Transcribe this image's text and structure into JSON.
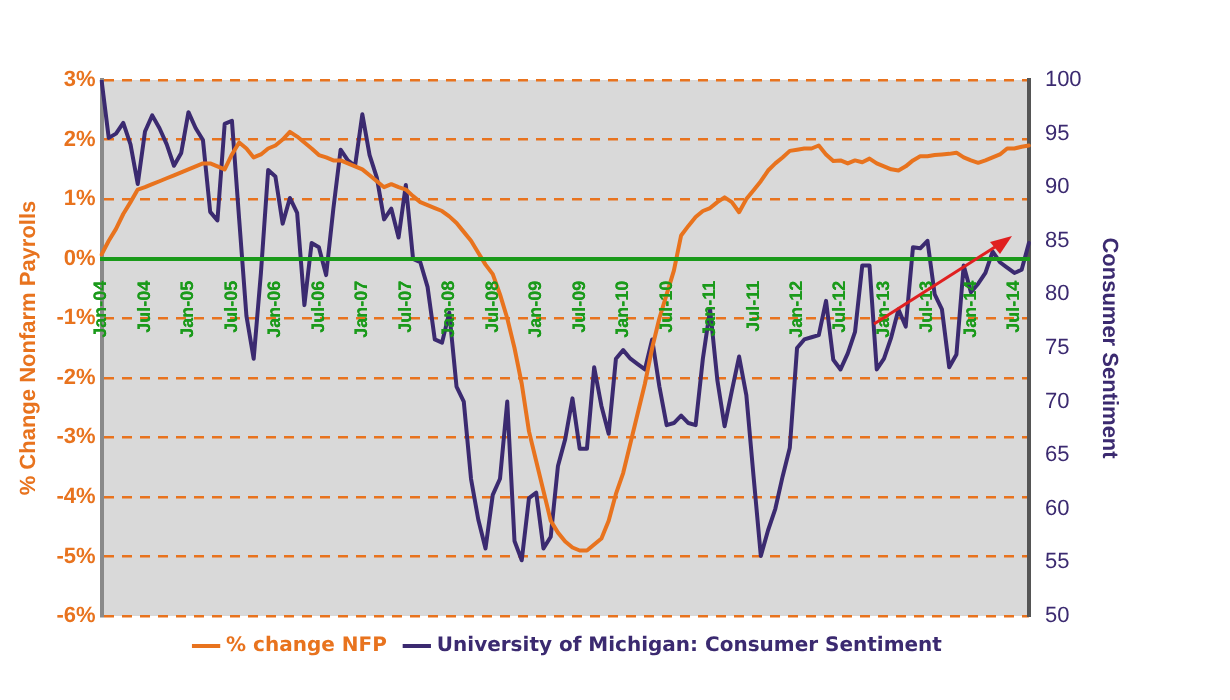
{
  "chart_data": {
    "type": "line",
    "ylabel": "% Change Nonfarm Payrolls",
    "y2label": "Consumer Sentiment",
    "categories": [
      "Jan-04",
      null,
      null,
      null,
      null,
      null,
      "Jul-04",
      null,
      null,
      null,
      null,
      null,
      "Jan-05",
      null,
      null,
      null,
      null,
      null,
      "Jul-05",
      null,
      null,
      null,
      null,
      null,
      "Jan-06",
      null,
      null,
      null,
      null,
      null,
      "Jul-06",
      null,
      null,
      null,
      null,
      null,
      "Jan-07",
      null,
      null,
      null,
      null,
      null,
      "Jul-07",
      null,
      null,
      null,
      null,
      null,
      "Jan-08",
      null,
      null,
      null,
      null,
      null,
      "Jul-08",
      null,
      null,
      null,
      null,
      null,
      "Jan-09",
      null,
      null,
      null,
      null,
      null,
      "Jul-09",
      null,
      null,
      null,
      null,
      null,
      "Jan-10",
      null,
      null,
      null,
      null,
      null,
      "Jul-10",
      null,
      null,
      null,
      null,
      null,
      "Jan-11",
      null,
      null,
      null,
      null,
      null,
      "Jul-11",
      null,
      null,
      null,
      null,
      null,
      "Jan-12",
      null,
      null,
      null,
      null,
      null,
      "Jul-12",
      null,
      null,
      null,
      null,
      null,
      "Jan-13",
      null,
      null,
      null,
      null,
      null,
      "Jul-13",
      null,
      null,
      null,
      null,
      null,
      "Jan-14",
      null,
      null,
      null,
      null,
      null,
      "Jul-14",
      null,
      null
    ],
    "series": [
      {
        "name": "% change NFP",
        "color": "#e8731e",
        "values": [
          0.07,
          0.3,
          0.5,
          0.75,
          0.95,
          1.16,
          1.2,
          1.25,
          1.3,
          1.35,
          1.4,
          1.45,
          1.5,
          1.55,
          1.6,
          1.6,
          1.55,
          1.5,
          1.75,
          1.95,
          1.85,
          1.7,
          1.75,
          1.85,
          1.9,
          2.0,
          2.13,
          2.05,
          1.95,
          1.85,
          1.74,
          1.7,
          1.65,
          1.65,
          1.6,
          1.55,
          1.5,
          1.4,
          1.3,
          1.2,
          1.25,
          1.2,
          1.16,
          1.05,
          0.95,
          0.9,
          0.85,
          0.8,
          0.71,
          0.6,
          0.45,
          0.3,
          0.1,
          -0.1,
          -0.26,
          -0.6,
          -1.0,
          -1.5,
          -2.1,
          -2.9,
          -3.4,
          -3.9,
          -4.4,
          -4.6,
          -4.75,
          -4.85,
          -4.9,
          -4.9,
          -4.8,
          -4.7,
          -4.4,
          -3.95,
          -3.6,
          -3.1,
          -2.6,
          -2.1,
          -1.5,
          -1.0,
          -0.6,
          -0.2,
          0.39,
          0.55,
          0.7,
          0.8,
          0.85,
          0.95,
          1.03,
          0.95,
          0.78,
          1.0,
          1.15,
          1.3,
          1.48,
          1.6,
          1.7,
          1.81,
          1.83,
          1.85,
          1.85,
          1.9,
          1.75,
          1.64,
          1.65,
          1.6,
          1.65,
          1.62,
          1.68,
          1.6,
          1.55,
          1.5,
          1.48,
          1.55,
          1.65,
          1.72,
          1.72,
          1.74,
          1.75,
          1.76,
          1.78,
          1.7,
          1.65,
          1.61,
          1.65,
          1.7,
          1.75,
          1.85,
          1.85,
          1.88,
          1.9
        ]
      },
      {
        "name": "University of Michigan: Consumer Sentiment",
        "color": "#3b2a70",
        "axis": "y2",
        "values": [
          100,
          94.6,
          95,
          96,
          94,
          90.3,
          95.2,
          96.7,
          95.5,
          94,
          92,
          93.2,
          97,
          95.5,
          94.4,
          87.7,
          86.9,
          95.9,
          96.2,
          87,
          78,
          74,
          82,
          91.6,
          91,
          86.6,
          89,
          87.6,
          79,
          84.8,
          84.4,
          81.8,
          88,
          93.5,
          92.5,
          92,
          96.8,
          93,
          90.9,
          87,
          88,
          85.3,
          90.2,
          83.3,
          83,
          80.7,
          75.8,
          75.5,
          78.3,
          71.4,
          70,
          62.8,
          59,
          56.3,
          61.3,
          62.8,
          70,
          57,
          55.2,
          61,
          61.5,
          56.3,
          57.4,
          64,
          66.5,
          70.3,
          65.6,
          65.6,
          73.2,
          69.6,
          67,
          74,
          74.8,
          74,
          73.5,
          73,
          75.8,
          71.4,
          67.8,
          68,
          68.7,
          68,
          67.8,
          74,
          78.6,
          72,
          67.7,
          71,
          74.2,
          70.6,
          63,
          55.6,
          58,
          60,
          63,
          65.7,
          75,
          75.8,
          76,
          76.2,
          79.4,
          73.9,
          73,
          74.5,
          76.5,
          82.7,
          82.7,
          73,
          74,
          76,
          78.6,
          77,
          84.4,
          84.3,
          85,
          80,
          78.6,
          73.2,
          74.4,
          82.7,
          80.2,
          81,
          82,
          84,
          83,
          82.5,
          82,
          82.3,
          84.8
        ]
      }
    ],
    "ylim": [
      -6,
      3
    ],
    "yticks": [
      {
        "value": -6,
        "label": "-6%"
      },
      {
        "value": -5,
        "label": "-5%"
      },
      {
        "value": -4,
        "label": "-4%"
      },
      {
        "value": -3,
        "label": "-3%"
      },
      {
        "value": -2,
        "label": "-2%"
      },
      {
        "value": -1,
        "label": "-1%"
      },
      {
        "value": 0,
        "label": "0%"
      },
      {
        "value": 1,
        "label": "1%"
      },
      {
        "value": 2,
        "label": "2%"
      },
      {
        "value": 3,
        "label": "3%"
      }
    ],
    "y2lim": [
      50,
      100
    ],
    "y2ticks": [
      50,
      55,
      60,
      65,
      70,
      75,
      80,
      85,
      90,
      95,
      100
    ],
    "grid": "y",
    "legend": "bottom",
    "marker": "none",
    "line_style": "solid"
  }
}
